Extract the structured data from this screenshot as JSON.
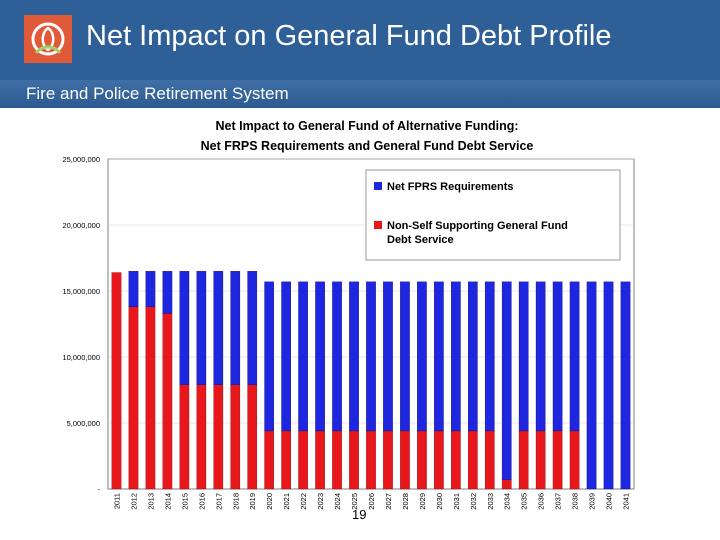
{
  "header": {
    "title": "Net Impact on General Fund Debt Profile",
    "subtitle": "Fire and Police Retirement System"
  },
  "page_number": "19",
  "colors": {
    "header_bg": "#2f5f97",
    "blue": "#1f26e0",
    "red": "#e8171b"
  },
  "icons": {
    "logo": "rose-logo-icon"
  },
  "chart_data": {
    "type": "bar",
    "stacked": true,
    "title": "Net Impact to General Fund of Alternative Funding:",
    "subtitle": "Net FRPS Requirements and General Fund Debt Service",
    "categories": [
      "2011",
      "2012",
      "2013",
      "2014",
      "2015",
      "2016",
      "2017",
      "2018",
      "2019",
      "2020",
      "2021",
      "2022",
      "2023",
      "2024",
      "2025",
      "2026",
      "2027",
      "2028",
      "2029",
      "2030",
      "2031",
      "2032",
      "2033",
      "2034",
      "2035",
      "2036",
      "2037",
      "2038",
      "2039",
      "2040",
      "2041"
    ],
    "ylim": [
      0,
      25000000
    ],
    "yticks": [
      "-",
      "5,000,000",
      "10,000,000",
      "15,000,000",
      "20,000,000",
      "25,000,000"
    ],
    "ytick_values": [
      0,
      5000000,
      10000000,
      15000000,
      20000000,
      25000000
    ],
    "legend_position": "top-right",
    "series": [
      {
        "name": "Net FPRS Requirements",
        "color": "#1f26e0",
        "values": [
          0,
          2700000,
          2700000,
          3200000,
          8600000,
          8600000,
          8600000,
          8600000,
          8600000,
          11300000,
          11300000,
          11300000,
          11300000,
          11300000,
          11300000,
          11300000,
          11300000,
          11300000,
          11300000,
          11300000,
          11300000,
          11300000,
          11300000,
          15000000,
          11300000,
          11300000,
          11300000,
          11300000,
          15700000,
          15700000,
          15700000
        ]
      },
      {
        "name": "Non-Self Supporting General Fund\nDebt Service",
        "color": "#e8171b",
        "values": [
          16400000,
          13800000,
          13800000,
          13300000,
          7900000,
          7900000,
          7900000,
          7900000,
          7900000,
          4400000,
          4400000,
          4400000,
          4400000,
          4400000,
          4400000,
          4400000,
          4400000,
          4400000,
          4400000,
          4400000,
          4400000,
          4400000,
          4400000,
          700000,
          4400000,
          4400000,
          4400000,
          4400000,
          0,
          0,
          0
        ]
      }
    ]
  }
}
